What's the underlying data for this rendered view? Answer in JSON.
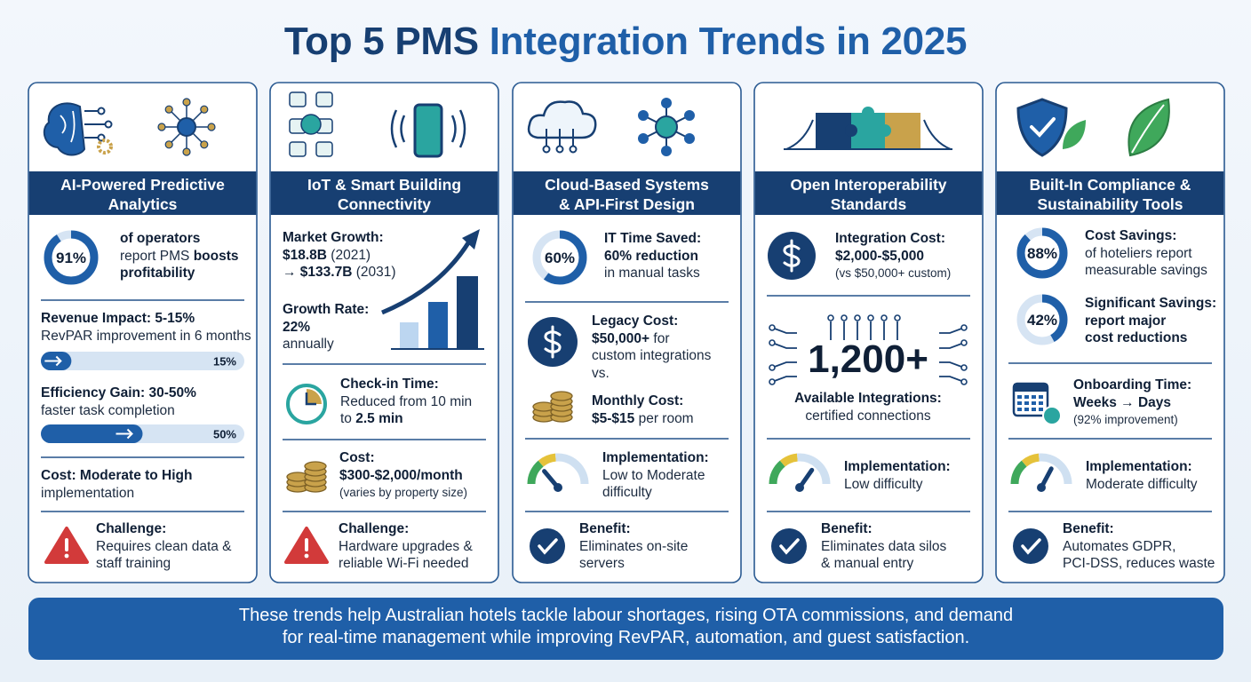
{
  "title": [
    "Top 5 PMS",
    "Integration Trends in 2025"
  ],
  "cards": [
    {
      "header": [
        "AI-Powered Predictive",
        "Analytics"
      ],
      "donut": {
        "value": 91,
        "label": "91%"
      },
      "stat": [
        "of operators",
        [
          "report PMS ",
          "boosts"
        ],
        "profitability"
      ],
      "revenue": {
        "lines": [
          "Revenue Impact: 5-15%",
          "RevPAR improvement in 6 months"
        ],
        "bar": {
          "value": 15,
          "label": "15%"
        }
      },
      "efficiency": {
        "lines": [
          "Efficiency Gain: 30-50%",
          "faster task completion"
        ],
        "bar": {
          "value": 50,
          "label": "50%"
        }
      },
      "cost": [
        "Cost: Moderate to High",
        "implementation"
      ],
      "challenge": [
        "Challenge:",
        "Requires clean data &",
        "staff training"
      ]
    },
    {
      "header": [
        "IoT & Smart Building",
        "Connectivity"
      ],
      "market": [
        "Market Growth:",
        [
          "$18.8B",
          " (2021)"
        ],
        [
          "→ $133.7B",
          " (2031)"
        ]
      ],
      "growth": [
        "Growth Rate:",
        "22%",
        "annually"
      ],
      "checkin": [
        "Check-in Time:",
        "Reduced from 10 min",
        [
          "to ",
          "2.5 min"
        ]
      ],
      "cost": [
        "Cost:",
        "$300-$2,000/month",
        "(varies by property size)"
      ],
      "challenge": [
        "Challenge:",
        "Hardware upgrades &",
        "reliable Wi-Fi needed"
      ]
    },
    {
      "header": [
        "Cloud-Based Systems",
        "& API-First Design"
      ],
      "donut": {
        "value": 60,
        "label": "60%"
      },
      "stat": [
        "IT Time Saved:",
        "60% reduction",
        "in manual tasks"
      ],
      "legacy": [
        "Legacy Cost:",
        [
          "$50,000+",
          " for"
        ],
        "custom integrations",
        "vs."
      ],
      "monthly": [
        "Monthly Cost:",
        [
          "$5-$15",
          " per room"
        ]
      ],
      "implementation": [
        "Implementation:",
        "Low to Moderate",
        "difficulty"
      ],
      "benefit": [
        "Benefit:",
        "Eliminates on-site",
        "servers"
      ]
    },
    {
      "header": [
        "Open Interoperability",
        "Standards"
      ],
      "cost": [
        "Integration Cost:",
        "$2,000-$5,000",
        "(vs $50,000+ custom)"
      ],
      "integrations": [
        "1,200+",
        "Available Integrations:",
        "certified connections"
      ],
      "implementation": [
        "Implementation:",
        "Low difficulty"
      ],
      "benefit": [
        "Benefit:",
        "Eliminates data silos",
        "& manual entry"
      ]
    },
    {
      "header": [
        "Built-In Compliance &",
        "Sustainability Tools"
      ],
      "donuts": [
        {
          "value": 88,
          "label": "88%",
          "lines": [
            "Cost Savings:",
            "of hoteliers report",
            "measurable savings"
          ]
        },
        {
          "value": 42,
          "label": "42%",
          "lines": [
            "Significant Savings:",
            "report major",
            "cost reductions"
          ]
        }
      ],
      "onboarding": [
        "Onboarding Time:",
        "Weeks → Days",
        "(92% improvement)"
      ],
      "implementation": [
        "Implementation:",
        "Moderate difficulty"
      ],
      "benefit": [
        "Benefit:",
        "Automates GDPR,",
        "PCI-DSS, reduces waste"
      ]
    }
  ],
  "footer": [
    "These trends help Australian hotels tackle labour shortages, rising OTA commissions, and demand",
    "for real-time management while improving RevPAR, automation, and guest satisfaction."
  ]
}
